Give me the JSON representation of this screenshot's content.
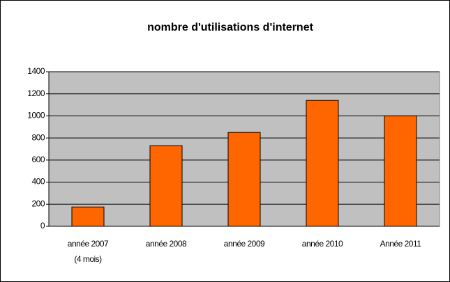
{
  "chart_data": {
    "type": "bar",
    "title": "nombre d'utilisations d'internet",
    "categories": [
      "année 2007 (4 mois)",
      "année 2008",
      "année 2009",
      "année 2010",
      "Année 2011"
    ],
    "values": [
      175,
      730,
      850,
      1140,
      1000
    ],
    "color": "#ff6600",
    "ylim": [
      0,
      1400
    ],
    "yticks": [
      0,
      200,
      400,
      600,
      800,
      1000,
      1200,
      1400
    ],
    "grid": true
  }
}
